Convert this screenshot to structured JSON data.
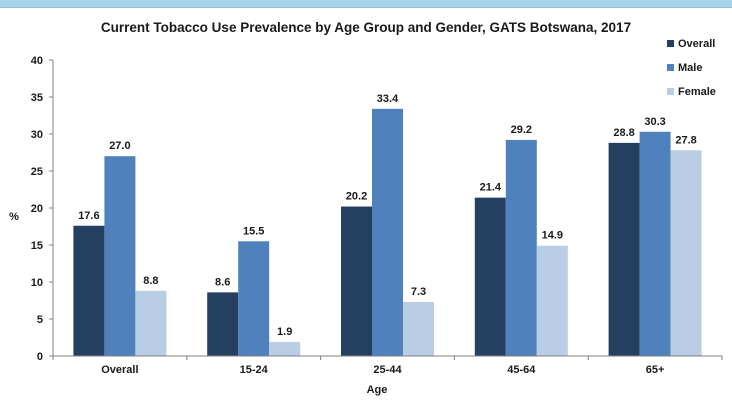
{
  "chart_data": {
    "type": "bar",
    "title": "Current Tobacco Use Prevalence by Age Group and Gender, GATS Botswana, 2017",
    "xlabel": "Age",
    "ylabel": "%",
    "ylim": [
      0,
      40
    ],
    "yticks": [
      0,
      5,
      10,
      15,
      20,
      25,
      30,
      35,
      40
    ],
    "grid": false,
    "legend_position": "top-right",
    "categories": [
      "Overall",
      "15-24",
      "25-44",
      "45-64",
      "65+"
    ],
    "series": [
      {
        "name": "Overall",
        "color": "#243f60",
        "values": [
          17.6,
          8.6,
          20.2,
          21.4,
          28.8
        ],
        "labels": [
          "17.6",
          "8.6",
          "20.2",
          "21.4",
          "28.8"
        ]
      },
      {
        "name": "Male",
        "color": "#4f81bd",
        "values": [
          27.0,
          15.5,
          33.4,
          29.2,
          30.3
        ],
        "labels": [
          "27.0",
          "15.5",
          "33.4",
          "29.2",
          "30.3"
        ]
      },
      {
        "name": "Female",
        "color": "#b9cde5",
        "values": [
          8.8,
          1.9,
          7.3,
          14.9,
          27.8
        ],
        "labels": [
          "8.8",
          "1.9",
          "7.3",
          "14.9",
          "27.8"
        ]
      }
    ]
  }
}
